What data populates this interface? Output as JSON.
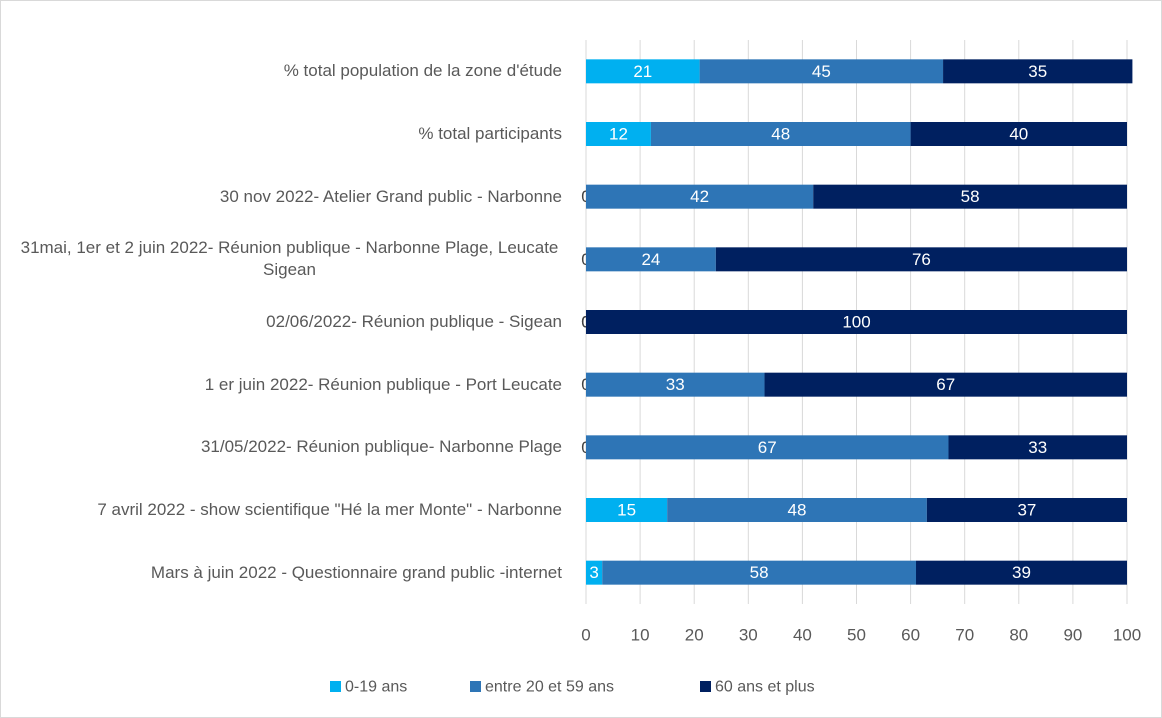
{
  "chart_data": {
    "type": "stacked_barh",
    "categories": [
      "% total population de la zone d'étude",
      "% total participants",
      "30 nov 2022- Atelier Grand public - Narbonne",
      "31mai, 1er et 2 juin 2022- Réunion publique - Narbonne Plage, Leucate Sigean",
      "02/06/2022- Réunion publique - Sigean",
      "1 er juin 2022- Réunion publique - Port Leucate",
      "31/05/2022- Réunion publique- Narbonne Plage",
      "7 avril 2022 - show scientifique \"Hé la mer Monte\" - Narbonne",
      "Mars à juin 2022 - Questionnaire grand public -internet"
    ],
    "series": [
      {
        "name": "0-19 ans",
        "color": "#00b0f0",
        "values": [
          21,
          12,
          0,
          0,
          0,
          0,
          0,
          15,
          3
        ]
      },
      {
        "name": "entre 20 et 59 ans",
        "color": "#2e75b6",
        "values": [
          45,
          48,
          42,
          24,
          0,
          33,
          67,
          48,
          58
        ]
      },
      {
        "name": "60 ans et plus",
        "color": "#002060",
        "values": [
          35,
          40,
          58,
          76,
          100,
          67,
          33,
          37,
          39
        ]
      }
    ],
    "xlim": [
      0,
      100
    ],
    "xticks": [
      0,
      10,
      20,
      30,
      40,
      50,
      60,
      70,
      80,
      90,
      100
    ],
    "grid": true,
    "legend": "bottom"
  }
}
